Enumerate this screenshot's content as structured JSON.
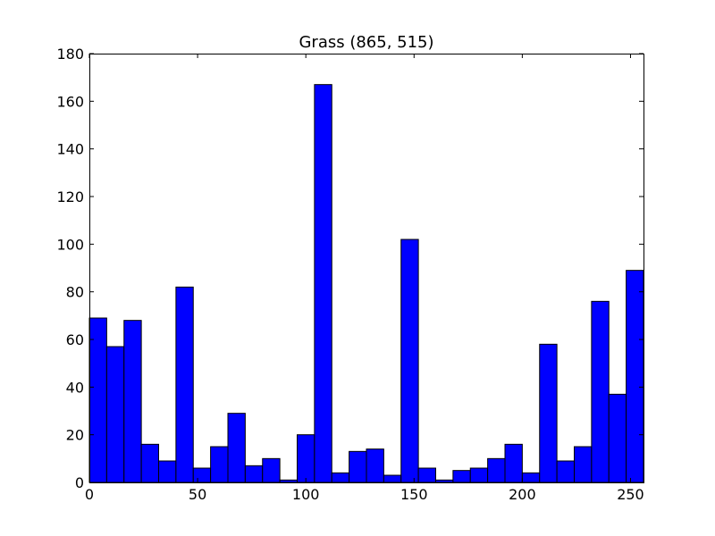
{
  "chart_data": {
    "type": "bar",
    "title": "Grass (865, 515)",
    "xlabel": "",
    "ylabel": "",
    "xlim": [
      0,
      256
    ],
    "ylim": [
      0,
      180
    ],
    "bin_width": 8,
    "bin_starts": [
      0,
      8,
      16,
      24,
      32,
      40,
      48,
      56,
      64,
      72,
      80,
      88,
      96,
      104,
      112,
      120,
      128,
      136,
      144,
      152,
      160,
      168,
      176,
      184,
      192,
      200,
      208,
      216,
      224,
      232,
      240,
      248
    ],
    "values": [
      69,
      57,
      68,
      16,
      9,
      82,
      6,
      15,
      29,
      7,
      10,
      1,
      20,
      167,
      4,
      13,
      14,
      3,
      102,
      6,
      1,
      5,
      6,
      10,
      16,
      4,
      58,
      9,
      15,
      76,
      37,
      89
    ],
    "xticks": [
      0,
      50,
      100,
      150,
      200,
      250
    ],
    "yticks": [
      0,
      20,
      40,
      60,
      80,
      100,
      120,
      140,
      160,
      180
    ],
    "bar_color": "#0000ff",
    "edge_color": "#000000",
    "grid": false,
    "legend": "none"
  }
}
